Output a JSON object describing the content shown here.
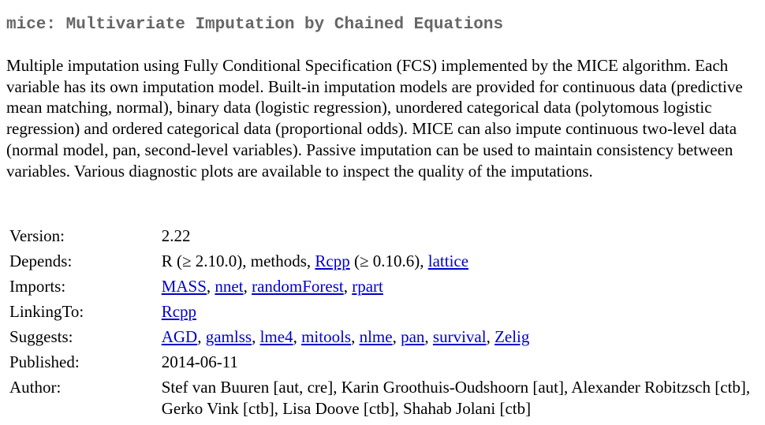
{
  "title": "mice: Multivariate Imputation by Chained Equations",
  "description": "Multiple imputation using Fully Conditional Specification (FCS) implemented by the MICE algorithm. Each variable has its own imputation model. Built-in imputation models are provided for continuous data (predictive mean matching, normal), binary data (logistic regression), unordered categorical data (polytomous logistic regression) and ordered categorical data (proportional odds). MICE can also impute continuous two-level data (normal model, pan, second-level variables). Passive imputation can be used to maintain consistency between variables. Various diagnostic plots are available to inspect the quality of the imputations.",
  "link_color": "#0000cc",
  "title_color": "#666666",
  "fields": {
    "version": {
      "label": "Version:",
      "value": "2.22"
    },
    "depends": {
      "label": "Depends:",
      "r_text": "R (≥ 2.10.0), methods, ",
      "rcpp": "Rcpp",
      "rcpp_suffix": " (≥ 0.10.6), ",
      "lattice": "lattice"
    },
    "imports": {
      "label": "Imports:",
      "links": [
        "MASS",
        "nnet",
        "randomForest",
        "rpart"
      ]
    },
    "linkingto": {
      "label": "LinkingTo:",
      "links": [
        "Rcpp"
      ]
    },
    "suggests": {
      "label": "Suggests:",
      "links": [
        "AGD",
        "gamlss",
        "lme4",
        "mitools",
        "nlme",
        "pan",
        "survival",
        "Zelig"
      ]
    },
    "published": {
      "label": "Published:",
      "value": "2014-06-11"
    },
    "author": {
      "label": "Author:",
      "value": "Stef van Buuren [aut, cre], Karin Groothuis-Oudshoorn [aut], Alexander Robitzsch [ctb], Gerko Vink [ctb], Lisa Doove [ctb], Shahab Jolani [ctb]"
    }
  }
}
